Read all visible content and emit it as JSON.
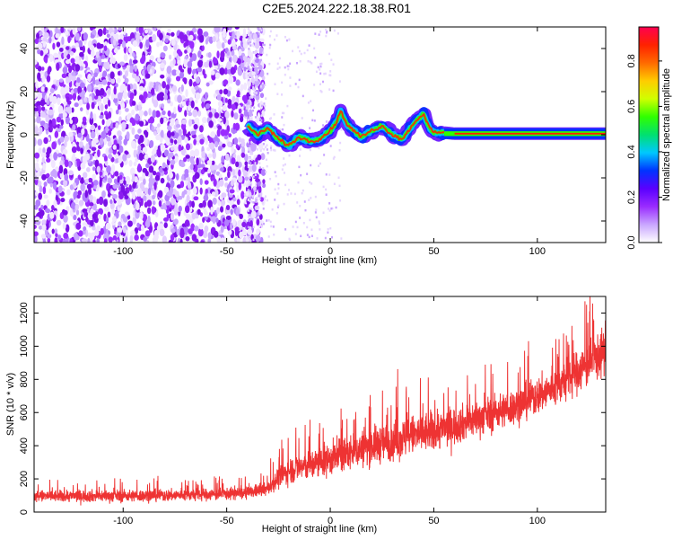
{
  "title": "C2E5.2024.222.18.38.R01",
  "colors": {
    "snr_line": "#ee3333",
    "axis": "#000000",
    "colormap": [
      "#ffffff",
      "#c9a6ff",
      "#9a2cff",
      "#5a00ff",
      "#0033ff",
      "#00c8ff",
      "#00e070",
      "#30ff00",
      "#d0ff00",
      "#ffcc00",
      "#ff6a00",
      "#ff2200",
      "#ff0050"
    ]
  },
  "chart_data": [
    {
      "type": "heatmap",
      "title": "",
      "xlabel": "Height of straight line (km)",
      "ylabel": "Frequency (Hz)",
      "xlim": [
        -143,
        133
      ],
      "ylim": [
        -50,
        50
      ],
      "xticks": [
        -100,
        -50,
        0,
        50,
        100
      ],
      "xtick_labels": [
        "-100",
        "-50",
        "0",
        "50",
        "100"
      ],
      "yticks": [
        -40,
        -20,
        0,
        20,
        40
      ],
      "ytick_labels": [
        "-40",
        "-20",
        "0",
        "20",
        "40"
      ],
      "colorbar": {
        "label": "Normalized spectral amplitude",
        "range": [
          0,
          0.95
        ],
        "ticks": [
          0,
          0.2,
          0.4,
          0.6,
          0.8
        ],
        "tick_labels": [
          "0.0",
          "0.2",
          "0.4",
          "0.6",
          "0.8"
        ]
      },
      "ridge": {
        "description": "dominant spectral line frequency vs height",
        "height_km": [
          -40,
          -35,
          -30,
          -25,
          -20,
          -15,
          -10,
          -5,
          0,
          3,
          5,
          8,
          10,
          15,
          20,
          25,
          30,
          35,
          40,
          45,
          48,
          50,
          55,
          60,
          80,
          100,
          133
        ],
        "frequency_hz": [
          4,
          0,
          3,
          -2,
          -5,
          -1,
          -3,
          -2,
          2,
          6,
          11,
          5,
          3,
          -1,
          2,
          4,
          0,
          -2,
          5,
          10,
          3,
          1,
          1,
          0.5,
          0.5,
          0.5,
          0.5
        ]
      },
      "noise_region_km": [
        -143,
        -40
      ]
    },
    {
      "type": "line",
      "title": "",
      "xlabel": "Height of straight line (km)",
      "ylabel": "SNR (10 * v/v)",
      "xlim": [
        -143,
        133
      ],
      "ylim": [
        0,
        1300
      ],
      "xticks": [
        -100,
        -50,
        0,
        50,
        100
      ],
      "xtick_labels": [
        "-100",
        "-50",
        "0",
        "50",
        "100"
      ],
      "yticks": [
        0,
        200,
        400,
        600,
        800,
        1000,
        1200
      ],
      "ytick_labels": [
        "0",
        "200",
        "400",
        "600",
        "800",
        "1000",
        "1200"
      ],
      "series": [
        {
          "envelope_x": [
            -143,
            -120,
            -100,
            -80,
            -60,
            -40,
            -30,
            -25,
            -20,
            -15,
            -10,
            -5,
            0,
            10,
            20,
            30,
            40,
            50,
            60,
            70,
            80,
            90,
            100,
            110,
            120,
            125,
            133
          ],
          "mean": [
            95,
            97,
            98,
            100,
            105,
            115,
            140,
            210,
            250,
            270,
            280,
            300,
            320,
            360,
            400,
            430,
            460,
            490,
            520,
            560,
            600,
            640,
            700,
            760,
            850,
            900,
            970
          ],
          "spread": [
            65,
            65,
            65,
            65,
            65,
            65,
            70,
            120,
            140,
            150,
            160,
            170,
            180,
            190,
            200,
            210,
            220,
            220,
            200,
            190,
            190,
            190,
            200,
            210,
            230,
            240,
            250
          ]
        }
      ]
    }
  ]
}
